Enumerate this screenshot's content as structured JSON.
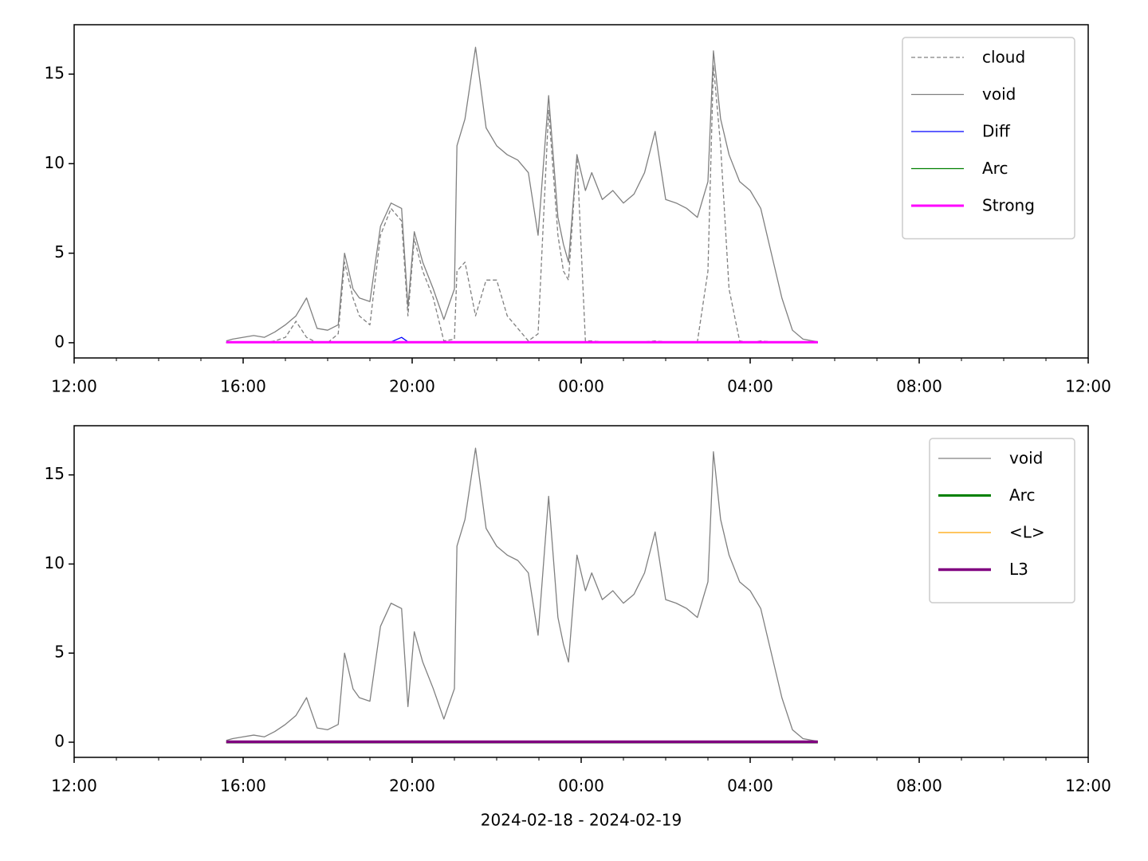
{
  "chart_data": [
    {
      "type": "line",
      "legend": "upper right",
      "xlim": [
        12,
        36
      ],
      "xticks": [
        {
          "value": 12,
          "label": "12:00"
        },
        {
          "value": 16,
          "label": "16:00"
        },
        {
          "value": 20,
          "label": "20:00"
        },
        {
          "value": 24,
          "label": "00:00"
        },
        {
          "value": 28,
          "label": "04:00"
        },
        {
          "value": 32,
          "label": "08:00"
        },
        {
          "value": 36,
          "label": "12:00"
        }
      ],
      "xminorticks": [
        13,
        14,
        15,
        17,
        18,
        19,
        21,
        22,
        23,
        25,
        26,
        27,
        29,
        30,
        31,
        33,
        34,
        35
      ],
      "ylim": [
        -0.85,
        17.76
      ],
      "yticks": [
        0,
        5,
        10,
        15
      ],
      "series": [
        {
          "name": "cloud",
          "color": "#808080",
          "dash": true,
          "width": 1.3,
          "x": [
            15.6,
            15.75,
            16,
            16.25,
            16.5,
            16.75,
            17,
            17.25,
            17.5,
            17.75,
            18,
            18.25,
            18.4,
            18.6,
            18.75,
            19,
            19.25,
            19.5,
            19.75,
            19.9,
            20.05,
            20.25,
            20.5,
            20.75,
            21,
            21.06,
            21.25,
            21.5,
            21.75,
            22,
            22.25,
            22.5,
            22.75,
            22.98,
            23.23,
            23.45,
            23.58,
            23.7,
            23.9,
            24.1,
            24.25,
            24.5,
            24.75,
            25,
            25.25,
            25.5,
            25.75,
            26,
            26.25,
            26.5,
            26.75,
            27,
            27.13,
            27.3,
            27.5,
            27.75,
            28,
            28.25,
            28.5,
            28.75,
            29,
            29.25,
            29.6
          ],
          "values": [
            0,
            0,
            0,
            0,
            0,
            0.1,
            0.3,
            1.2,
            0.3,
            0,
            0,
            0.5,
            4.5,
            2.5,
            1.5,
            1.0,
            6.0,
            7.5,
            6.8,
            1.5,
            5.8,
            4.0,
            2.5,
            0.1,
            0.2,
            4.0,
            4.5,
            1.5,
            3.5,
            3.5,
            1.5,
            0.8,
            0.1,
            0.5,
            13.0,
            6.0,
            4.0,
            3.5,
            10.5,
            0.1,
            0.1,
            0.05,
            0.05,
            0.05,
            0.05,
            0.05,
            0.1,
            0.05,
            0.05,
            0.05,
            0.05,
            4,
            15.5,
            11,
            3,
            0.1,
            0,
            0.1,
            0.05,
            0,
            0,
            0,
            0
          ]
        },
        {
          "name": "void",
          "color": "#808080",
          "width": 1.3,
          "x": [
            15.6,
            15.75,
            16,
            16.25,
            16.5,
            16.75,
            17,
            17.25,
            17.5,
            17.75,
            18,
            18.25,
            18.4,
            18.6,
            18.75,
            19,
            19.25,
            19.5,
            19.75,
            19.9,
            20.05,
            20.25,
            20.5,
            20.75,
            21,
            21.06,
            21.25,
            21.5,
            21.75,
            22,
            22.25,
            22.5,
            22.75,
            22.98,
            23.23,
            23.45,
            23.58,
            23.7,
            23.9,
            24.1,
            24.25,
            24.5,
            24.75,
            25,
            25.25,
            25.5,
            25.75,
            26,
            26.25,
            26.5,
            26.75,
            27,
            27.13,
            27.3,
            27.5,
            27.75,
            28,
            28.25,
            28.5,
            28.75,
            29,
            29.25,
            29.6
          ],
          "values": [
            0.1,
            0.2,
            0.3,
            0.4,
            0.3,
            0.6,
            1.0,
            1.5,
            2.5,
            0.8,
            0.7,
            1.0,
            5.0,
            3.0,
            2.5,
            2.3,
            6.5,
            7.8,
            7.5,
            2.0,
            6.2,
            4.5,
            3.0,
            1.3,
            3.0,
            11.0,
            12.5,
            16.5,
            12,
            11,
            10.5,
            10.2,
            9.5,
            6.0,
            13.8,
            7.0,
            5.5,
            4.5,
            10.5,
            8.5,
            9.5,
            8.0,
            8.5,
            7.8,
            8.3,
            9.5,
            11.8,
            8.0,
            7.8,
            7.5,
            7.0,
            9.0,
            16.3,
            12.5,
            10.5,
            9.0,
            8.5,
            7.5,
            5.0,
            2.5,
            0.7,
            0.2,
            0.05
          ]
        },
        {
          "name": "Diff",
          "color": "#0000ff",
          "width": 1.3,
          "x": [
            15.6,
            19.5,
            19.75,
            19.9,
            29.6
          ],
          "values": [
            0.02,
            0.05,
            0.3,
            0.05,
            0.02
          ]
        },
        {
          "name": "Arc",
          "color": "#008000",
          "width": 1.3,
          "x": [
            15.6,
            29.6
          ],
          "values": [
            0,
            0
          ]
        },
        {
          "name": "Strong",
          "color": "#ff00ff",
          "width": 3,
          "x": [
            15.6,
            29.6
          ],
          "values": [
            0.03,
            0.03
          ]
        }
      ]
    },
    {
      "type": "line",
      "legend": "upper right",
      "xlabel": "2024-02-18 - 2024-02-19",
      "xlim": [
        12,
        36
      ],
      "xticks": [
        {
          "value": 12,
          "label": "12:00"
        },
        {
          "value": 16,
          "label": "16:00"
        },
        {
          "value": 20,
          "label": "20:00"
        },
        {
          "value": 24,
          "label": "00:00"
        },
        {
          "value": 28,
          "label": "04:00"
        },
        {
          "value": 32,
          "label": "08:00"
        },
        {
          "value": 36,
          "label": "12:00"
        }
      ],
      "xminorticks": [
        13,
        14,
        15,
        17,
        18,
        19,
        21,
        22,
        23,
        25,
        26,
        27,
        29,
        30,
        31,
        33,
        34,
        35
      ],
      "ylim": [
        -0.85,
        17.76
      ],
      "yticks": [
        0,
        5,
        10,
        15
      ],
      "series": [
        {
          "name": "void",
          "color": "#808080",
          "width": 1.3,
          "x": [
            15.6,
            15.75,
            16,
            16.25,
            16.5,
            16.75,
            17,
            17.25,
            17.5,
            17.75,
            18,
            18.25,
            18.4,
            18.6,
            18.75,
            19,
            19.25,
            19.5,
            19.75,
            19.9,
            20.05,
            20.25,
            20.5,
            20.75,
            21,
            21.06,
            21.25,
            21.5,
            21.75,
            22,
            22.25,
            22.5,
            22.75,
            22.98,
            23.23,
            23.45,
            23.58,
            23.7,
            23.9,
            24.1,
            24.25,
            24.5,
            24.75,
            25,
            25.25,
            25.5,
            25.75,
            26,
            26.25,
            26.5,
            26.75,
            27,
            27.13,
            27.3,
            27.5,
            27.75,
            28,
            28.25,
            28.5,
            28.75,
            29,
            29.25,
            29.6
          ],
          "values": [
            0.1,
            0.2,
            0.3,
            0.4,
            0.3,
            0.6,
            1.0,
            1.5,
            2.5,
            0.8,
            0.7,
            1.0,
            5.0,
            3.0,
            2.5,
            2.3,
            6.5,
            7.8,
            7.5,
            2.0,
            6.2,
            4.5,
            3.0,
            1.3,
            3.0,
            11.0,
            12.5,
            16.5,
            12,
            11,
            10.5,
            10.2,
            9.5,
            6.0,
            13.8,
            7.0,
            5.5,
            4.5,
            10.5,
            8.5,
            9.5,
            8.0,
            8.5,
            7.8,
            8.3,
            9.5,
            11.8,
            8.0,
            7.8,
            7.5,
            7.0,
            9.0,
            16.3,
            12.5,
            10.5,
            9.0,
            8.5,
            7.5,
            5.0,
            2.5,
            0.7,
            0.2,
            0.05
          ]
        },
        {
          "name": "Arc",
          "color": "#008000",
          "width": 3,
          "x": [
            15.6,
            29.6
          ],
          "values": [
            0,
            0
          ]
        },
        {
          "name": "<L>",
          "color": "#ffa500",
          "width": 1.3,
          "x": [
            15.6,
            29.6
          ],
          "values": [
            0,
            0
          ]
        },
        {
          "name": "L3",
          "color": "#800080",
          "width": 3.5,
          "x": [
            15.6,
            29.6
          ],
          "values": [
            0.02,
            0.02
          ]
        }
      ]
    }
  ]
}
